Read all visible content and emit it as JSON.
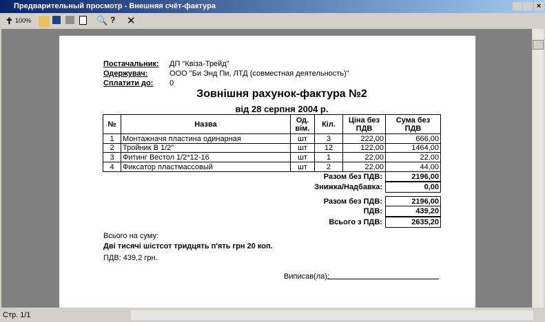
{
  "window": {
    "title": "Предварительный просмотр - Внешняя счёт-фактура",
    "zoom": "100%"
  },
  "header": {
    "rows": [
      [
        "Постачальник:",
        "ДП \"Квіза-Трейд\""
      ],
      [
        "Одержувач:",
        "ООО \"Би Энд Пи, ЛТД (совместная деятельность)\""
      ],
      [
        "Сплатити до:",
        "0"
      ]
    ]
  },
  "document": {
    "title": "Зовнішня рахунок-фактура №2",
    "date": "від 28 серпня 2004 р."
  },
  "table": {
    "columns": [
      "№",
      "Назва",
      "Од. вім.",
      "Кіл.",
      "Ціна без ПДВ",
      "Сума без ПДВ"
    ],
    "rows": [
      [
        "1",
        "Монтажначя пластина одинарная",
        "шт",
        "3",
        "222,00",
        "666,00"
      ],
      [
        "2",
        "Тройник В 1/2\"",
        "шт",
        "12",
        "122,00",
        "1464,00"
      ],
      [
        "3",
        "Фитинг Вестол 1/2*12-16",
        "шт",
        "1",
        "22,00",
        "22,00"
      ],
      [
        "4",
        "Фиксатор пластмассовый",
        "шт",
        "2",
        "22,00",
        "44,00"
      ]
    ]
  },
  "totals": [
    [
      "Разом без ПДВ:",
      "2196,00"
    ],
    [
      "Знижка/Надбавка:",
      "0,00"
    ],
    [
      "Разом без ПДВ:",
      "2196,00"
    ],
    [
      "ПДВ:",
      "439,20"
    ],
    [
      "Всього з ПДВ:",
      "2635,20"
    ]
  ],
  "footer": {
    "sum_label": "Всього на суму:",
    "sum_words": "Дві тисячі шістсот тридцять п'ять грн 20 коп.",
    "vat": "ПДВ: 439,2 грн.",
    "signed": "Виписав(ла):"
  },
  "status": {
    "page": "Стр. 1/1"
  }
}
